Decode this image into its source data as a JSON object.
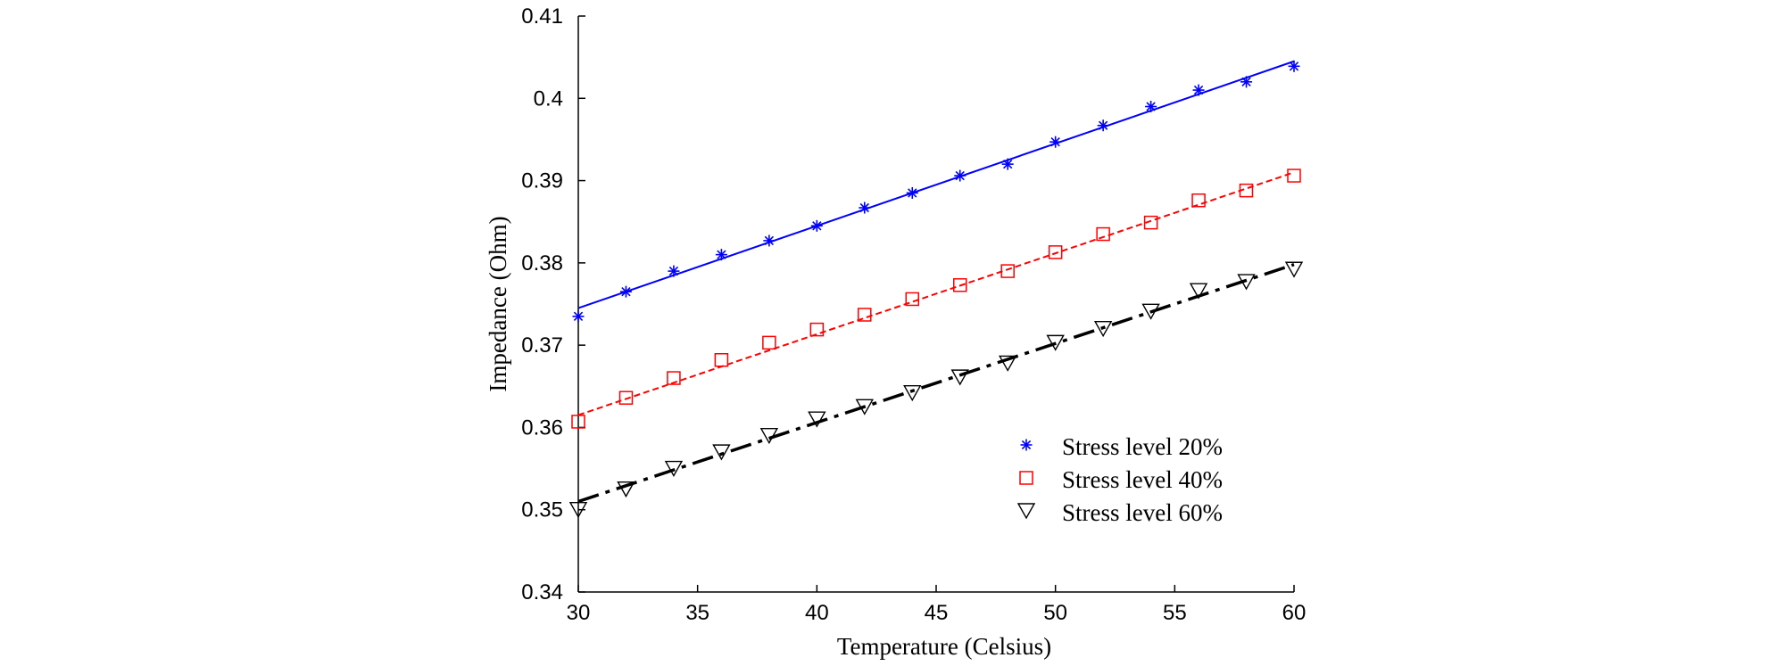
{
  "chart_data": {
    "type": "line",
    "title": "",
    "xlabel": "Temperature (Celsius)",
    "ylabel": "Impedance (Ohm)",
    "xlim": [
      30,
      60
    ],
    "ylim": [
      0.34,
      0.41
    ],
    "x_ticks": [
      "30",
      "35",
      "40",
      "45",
      "50",
      "55",
      "60"
    ],
    "y_ticks": [
      "0.34",
      "0.35",
      "0.36",
      "0.37",
      "0.38",
      "0.39",
      "0.4",
      "0.41"
    ],
    "grid": false,
    "legend_position": "lower-right",
    "x": [
      30,
      32,
      34,
      36,
      38,
      40,
      42,
      44,
      46,
      48,
      50,
      52,
      54,
      56,
      58,
      60
    ],
    "series": [
      {
        "name": "Stress level 20%",
        "color": "#0000ff",
        "marker": "asterisk",
        "line_style": "solid",
        "values": [
          0.3735,
          0.3765,
          0.379,
          0.381,
          0.3827,
          0.3845,
          0.3867,
          0.3885,
          0.3906,
          0.392,
          0.3947,
          0.3967,
          0.399,
          0.401,
          0.402,
          0.4039
        ],
        "fit": [
          0.3745,
          0.4045
        ]
      },
      {
        "name": "Stress level 40%",
        "color": "#ff0000",
        "marker": "square",
        "line_style": "dashed",
        "values": [
          0.3607,
          0.3636,
          0.366,
          0.3682,
          0.3703,
          0.3719,
          0.3737,
          0.3756,
          0.3773,
          0.379,
          0.3813,
          0.3835,
          0.3849,
          0.3876,
          0.3888,
          0.3906
        ],
        "fit": [
          0.3615,
          0.391
        ]
      },
      {
        "name": "Stress level 60%",
        "color": "#000000",
        "marker": "triangle-down",
        "line_style": "dashdot",
        "values": [
          0.35,
          0.3525,
          0.355,
          0.357,
          0.359,
          0.361,
          0.3625,
          0.3642,
          0.3661,
          0.3678,
          0.3703,
          0.372,
          0.3741,
          0.3766,
          0.3777,
          0.3792
        ],
        "fit": [
          0.351,
          0.3798
        ]
      }
    ]
  }
}
